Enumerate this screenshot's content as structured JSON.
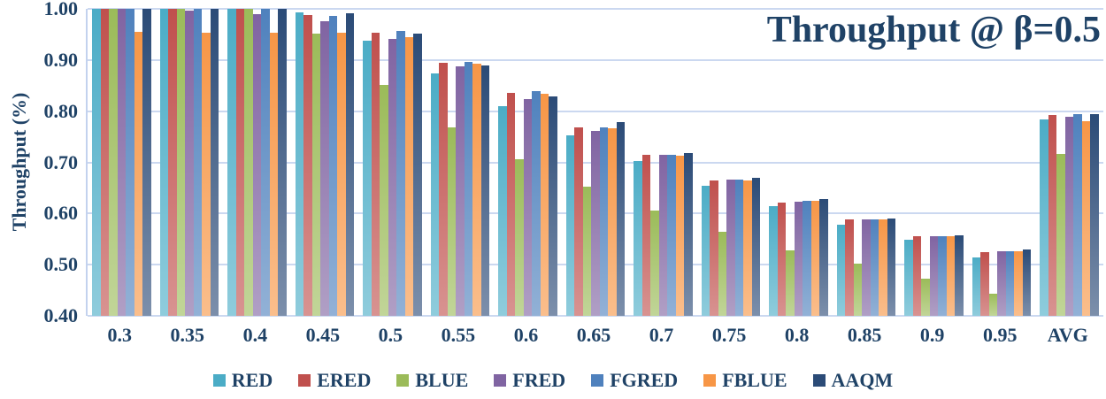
{
  "title": "Throughput @ β=0.5",
  "colors": {
    "text": "#1F4266",
    "gridline": "#CBD8F0",
    "axis_line": "#C3D2EE",
    "background": "#FFFFFF"
  },
  "chart_data": {
    "type": "bar",
    "title": "Throughput @ β=0.5",
    "xlabel": "",
    "ylabel": "Throughput (%)",
    "ylim": [
      0.4,
      1.0
    ],
    "ytick_step": 0.1,
    "ytick_labels": [
      "1.00",
      "0.90",
      "0.80",
      "0.70",
      "0.60",
      "0.50",
      "0.40"
    ],
    "grid": true,
    "legend_position": "bottom",
    "categories": [
      "0.3",
      "0.35",
      "0.4",
      "0.45",
      "0.5",
      "0.55",
      "0.6",
      "0.65",
      "0.7",
      "0.75",
      "0.8",
      "0.85",
      "0.9",
      "0.95",
      "AVG"
    ],
    "series": [
      {
        "name": "RED",
        "color": "#4BACC6",
        "values": [
          1.0,
          1.0,
          1.0,
          0.993,
          0.938,
          0.874,
          0.81,
          0.752,
          0.702,
          0.655,
          0.614,
          0.578,
          0.548,
          0.515,
          0.784
        ]
      },
      {
        "name": "ERED",
        "color": "#C0504D",
        "values": [
          1.0,
          1.0,
          1.0,
          0.988,
          0.953,
          0.895,
          0.835,
          0.769,
          0.714,
          0.665,
          0.621,
          0.588,
          0.555,
          0.524,
          0.793
        ]
      },
      {
        "name": "BLUE",
        "color": "#9BBB59",
        "values": [
          1.0,
          1.0,
          1.0,
          0.951,
          0.852,
          0.769,
          0.706,
          0.653,
          0.605,
          0.564,
          0.528,
          0.502,
          0.472,
          0.443,
          0.717
        ]
      },
      {
        "name": "FRED",
        "color": "#8064A2",
        "values": [
          1.0,
          0.997,
          0.99,
          0.975,
          0.941,
          0.887,
          0.824,
          0.762,
          0.714,
          0.666,
          0.623,
          0.588,
          0.556,
          0.527,
          0.789
        ]
      },
      {
        "name": "FGRED",
        "color": "#4F81BD",
        "values": [
          1.0,
          1.0,
          1.0,
          0.986,
          0.956,
          0.897,
          0.839,
          0.769,
          0.714,
          0.666,
          0.624,
          0.589,
          0.556,
          0.527,
          0.794
        ]
      },
      {
        "name": "FBLUE",
        "color": "#F79646",
        "values": [
          0.955,
          0.953,
          0.953,
          0.954,
          0.945,
          0.893,
          0.834,
          0.766,
          0.713,
          0.665,
          0.624,
          0.588,
          0.555,
          0.526,
          0.78
        ]
      },
      {
        "name": "AAQM",
        "color": "#2B4B77",
        "values": [
          1.0,
          1.0,
          1.0,
          0.991,
          0.951,
          0.889,
          0.828,
          0.778,
          0.719,
          0.669,
          0.629,
          0.59,
          0.558,
          0.53,
          0.794
        ]
      }
    ]
  }
}
